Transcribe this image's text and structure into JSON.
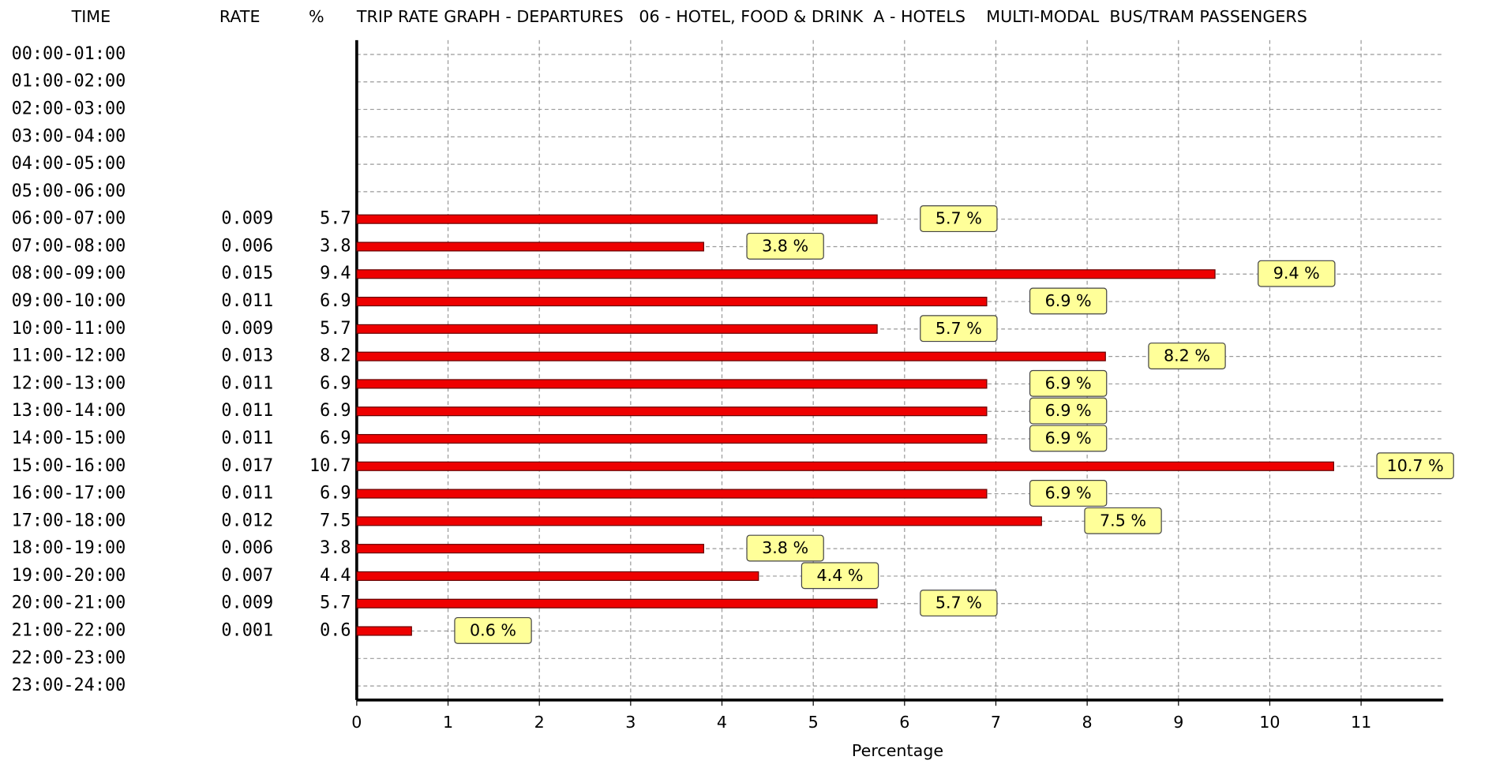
{
  "chart_data": {
    "type": "hbar",
    "title": "TRIP RATE GRAPH - DEPARTURES   06 - HOTEL, FOOD & DRINK  A - HOTELS    MULTI-MODAL  BUS/TRAM PASSENGERS",
    "headers": [
      "TIME",
      "RATE",
      "%"
    ],
    "x_label": "Percentage",
    "categories": [
      "00:00-01:00",
      "01:00-02:00",
      "02:00-03:00",
      "03:00-04:00",
      "04:00-05:00",
      "05:00-06:00",
      "06:00-07:00",
      "07:00-08:00",
      "08:00-09:00",
      "09:00-10:00",
      "10:00-11:00",
      "11:00-12:00",
      "12:00-13:00",
      "13:00-14:00",
      "14:00-15:00",
      "15:00-16:00",
      "16:00-17:00",
      "17:00-18:00",
      "18:00-19:00",
      "19:00-20:00",
      "20:00-21:00",
      "21:00-22:00",
      "22:00-23:00",
      "23:00-24:00"
    ],
    "rates": [
      null,
      null,
      null,
      null,
      null,
      null,
      0.009,
      0.006,
      0.015,
      0.011,
      0.009,
      0.013,
      0.011,
      0.011,
      0.011,
      0.017,
      0.011,
      0.012,
      0.006,
      0.007,
      0.009,
      0.001,
      null,
      null
    ],
    "values": [
      null,
      null,
      null,
      null,
      null,
      null,
      5.7,
      3.8,
      9.4,
      6.9,
      5.7,
      8.2,
      6.9,
      6.9,
      6.9,
      10.7,
      6.9,
      7.5,
      3.8,
      4.4,
      5.7,
      0.6,
      null,
      null
    ],
    "value_labels": [
      null,
      null,
      null,
      null,
      null,
      null,
      "5.7 %",
      "3.8 %",
      "9.4 %",
      "6.9 %",
      "5.7 %",
      "8.2 %",
      "6.9 %",
      "6.9 %",
      "6.9 %",
      "10.7 %",
      "6.9 %",
      "7.5 %",
      "3.8 %",
      "4.4 %",
      "5.7 %",
      "0.6 %",
      null,
      null
    ],
    "color": "#ee0000",
    "label_color": "#ffff99",
    "xlim": [
      0,
      11.9
    ],
    "xticks": [
      0,
      1,
      2,
      3,
      4,
      5,
      6,
      7,
      8,
      9,
      10,
      11
    ],
    "grid": true
  }
}
